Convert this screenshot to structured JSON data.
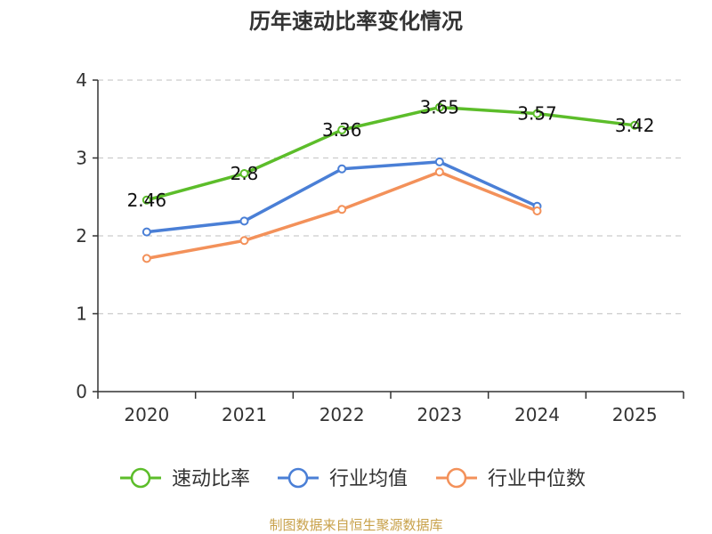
{
  "chart_data": {
    "type": "line",
    "title": "历年速动比率变化情况",
    "categories": [
      "2020",
      "2021",
      "2022",
      "2023",
      "2024",
      "2025"
    ],
    "ylim": [
      0,
      4
    ],
    "yticks": [
      "0",
      "1",
      "2",
      "3",
      "4"
    ],
    "grid": true,
    "legend_position": "bottom",
    "series": [
      {
        "name": "速动比率",
        "color": "#5cbd2a",
        "values": [
          2.46,
          2.8,
          3.36,
          3.65,
          3.57,
          3.42
        ],
        "labels": [
          "2.46",
          "2.8",
          "3.36",
          "3.65",
          "3.57",
          "3.42"
        ]
      },
      {
        "name": "行业均值",
        "color": "#4a7fd6",
        "values": [
          2.05,
          2.19,
          2.86,
          2.95,
          2.38,
          null
        ]
      },
      {
        "name": "行业中位数",
        "color": "#f3915a",
        "values": [
          1.71,
          1.94,
          2.34,
          2.82,
          2.32,
          null
        ]
      }
    ],
    "source": "制图数据来自恒生聚源数据库"
  }
}
